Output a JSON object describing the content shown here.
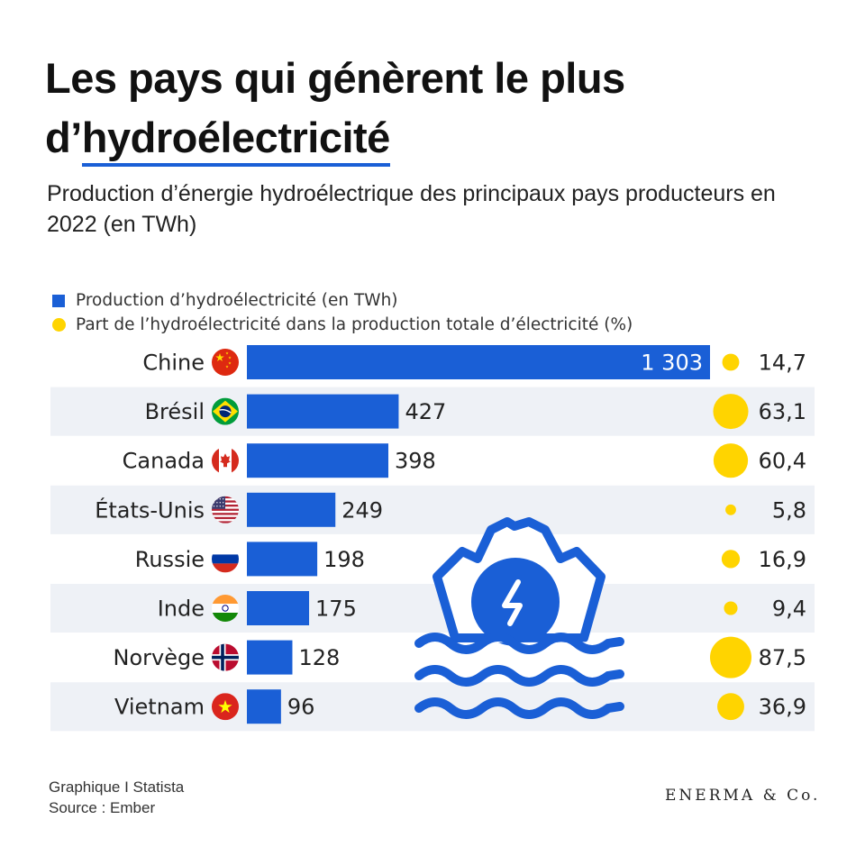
{
  "header": {
    "title_line1": "Les pays qui génèrent le plus",
    "title_line2_prefix": "d’",
    "title_line2_highlight": "hydroélectricité",
    "subtitle": "Production d’énergie hydroélectrique des principaux pays producteurs en 2022 (en TWh)"
  },
  "legend": {
    "bars": "Production d’hydroélectricité (en TWh)",
    "dots": "Part de l’hydroélectricité dans la production totale d’électricité (%)"
  },
  "footer": {
    "credit": "Graphique I Statista",
    "source": "Source : Ember",
    "brand": "ENERMA & Co."
  },
  "colors": {
    "bar": "#1a5fd6",
    "dot": "#ffd400",
    "row_band": "#eef1f6",
    "icon_dark": "#1a5fd6"
  },
  "chart_data": {
    "type": "bar",
    "orientation": "horizontal",
    "title": "Les pays qui génèrent le plus d’hydroélectricité",
    "categories": [
      "Chine",
      "Brésil",
      "Canada",
      "États-Unis",
      "Russie",
      "Inde",
      "Norvège",
      "Vietnam"
    ],
    "flags": [
      "flag-china-icon",
      "flag-brazil-icon",
      "flag-canada-icon",
      "flag-usa-icon",
      "flag-russia-icon",
      "flag-india-icon",
      "flag-norway-icon",
      "flag-vietnam-icon"
    ],
    "series": [
      {
        "name": "Production d’hydroélectricité (en TWh)",
        "values": [
          1303,
          427,
          398,
          249,
          198,
          175,
          128,
          96
        ],
        "labels": [
          "1 303",
          "427",
          "398",
          "249",
          "198",
          "175",
          "128",
          "96"
        ]
      },
      {
        "name": "Part de l’hydroélectricité dans la production totale d’électricité (%)",
        "values": [
          14.7,
          63.1,
          60.4,
          5.8,
          16.9,
          9.4,
          87.5,
          36.9
        ],
        "labels": [
          "14,7",
          "63,1",
          "60,4",
          "5,8",
          "16,9",
          "9,4",
          "87,5",
          "36,9"
        ]
      }
    ],
    "xlim": [
      0,
      1303
    ],
    "xlabel": "",
    "ylabel": "",
    "grid": false,
    "legend_position": "top-left"
  }
}
